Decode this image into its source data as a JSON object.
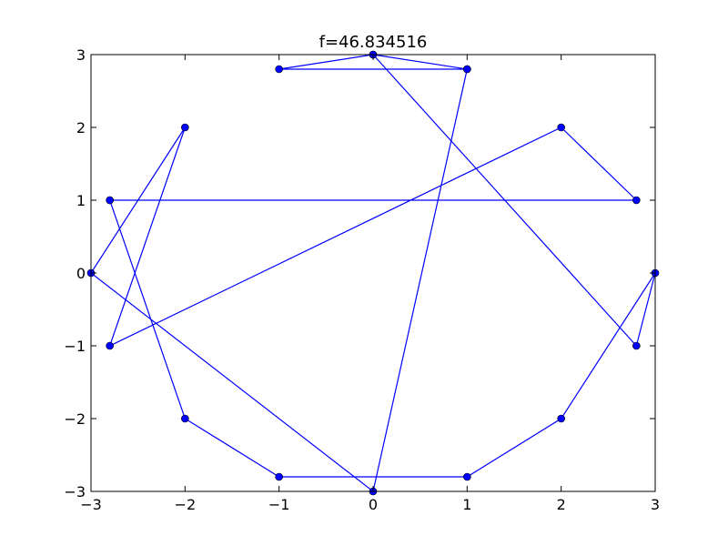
{
  "chart_data": {
    "type": "line",
    "title": "f=46.834516",
    "xlabel": "",
    "ylabel": "",
    "xlim": [
      -3,
      3
    ],
    "ylim": [
      -3,
      3
    ],
    "xticks": [
      -3,
      -2,
      -1,
      0,
      1,
      2,
      3
    ],
    "yticks": [
      -3,
      -2,
      -1,
      0,
      1,
      2,
      3
    ],
    "xtick_labels": [
      "−3",
      "−2",
      "−1",
      "0",
      "1",
      "2",
      "3"
    ],
    "ytick_labels": [
      "−3",
      "−2",
      "−1",
      "0",
      "1",
      "2",
      "3"
    ],
    "grid": false,
    "series": [
      {
        "color": "#0000ff",
        "marker": "circle",
        "x": [
          -2.8,
          -2,
          -1,
          1,
          2,
          3,
          2.8,
          0,
          1,
          0,
          -1,
          1,
          0,
          -3,
          -2,
          -2.8,
          2,
          2.8,
          -2.8
        ],
        "y": [
          1,
          -2,
          -2.8,
          -2.8,
          -2,
          0,
          -1,
          3,
          2.8,
          3,
          2.8,
          2.8,
          -3,
          0,
          2,
          -1,
          2,
          1,
          1
        ]
      }
    ]
  }
}
